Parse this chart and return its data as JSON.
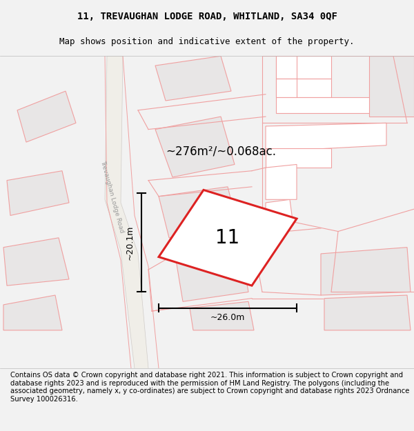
{
  "title_line1": "11, TREVAUGHAN LODGE ROAD, WHITLAND, SA34 0QF",
  "title_line2": "Map shows position and indicative extent of the property.",
  "area_label": "~276m²/~0.068ac.",
  "property_number": "11",
  "dim_vertical": "~20.1m",
  "dim_horizontal": "~26.0m",
  "road_label": "Trevaughan Lodge Road",
  "footer_text": "Contains OS data © Crown copyright and database right 2021. This information is subject to Crown copyright and database rights 2023 and is reproduced with the permission of HM Land Registry. The polygons (including the associated geometry, namely x, y co-ordinates) are subject to Crown copyright and database rights 2023 Ordnance Survey 100026316.",
  "bg_color": "#f2f2f2",
  "map_bg": "#ffffff",
  "building_fill": "#e8e6e6",
  "building_outline_light": "#f0a0a0",
  "building_outline_dark": "#dd2222",
  "title_fontsize": 10,
  "subtitle_fontsize": 9,
  "footer_fontsize": 7.2
}
